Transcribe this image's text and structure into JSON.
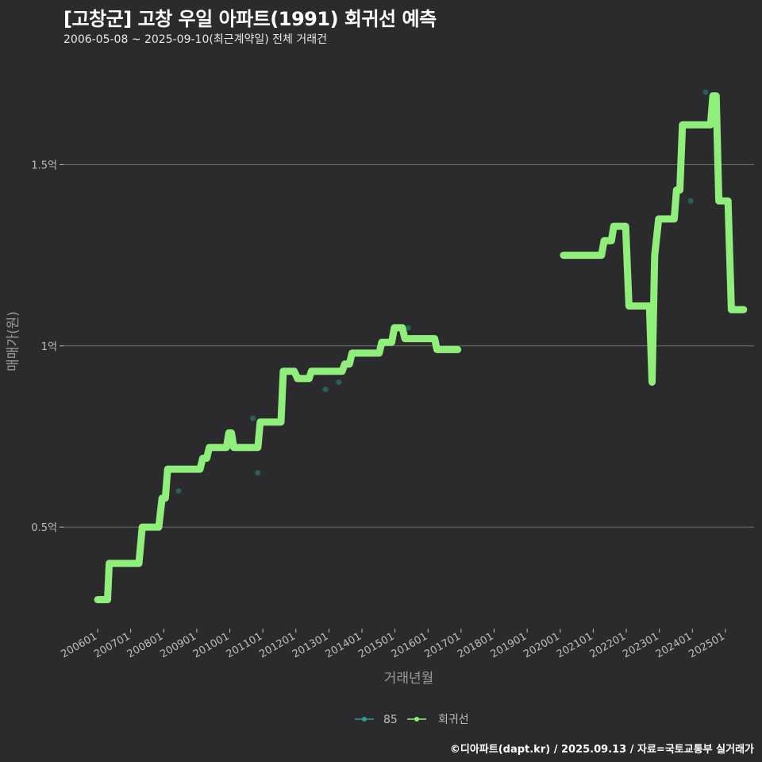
{
  "chart_data": {
    "type": "line",
    "title": "[고창군] 고창 우일 아파트(1991) 회귀선 예측",
    "subtitle": "2006-05-08 ~ 2025-09-10(최근계약일) 전체 거래건",
    "xlabel": "거래년월",
    "ylabel": "매매가(원)",
    "ylim": [
      0.22,
      1.79
    ],
    "y_ticks": [
      {
        "value": 0.5,
        "label": "0.5억"
      },
      {
        "value": 1.0,
        "label": "1억"
      },
      {
        "value": 1.5,
        "label": "1.5억"
      }
    ],
    "x_range": [
      2006.0,
      2026.9
    ],
    "x_ticks": [
      {
        "value": 2006.0,
        "label": "200601"
      },
      {
        "value": 2007.0,
        "label": "200701"
      },
      {
        "value": 2008.0,
        "label": "200801"
      },
      {
        "value": 2009.0,
        "label": "200901"
      },
      {
        "value": 2010.0,
        "label": "201001"
      },
      {
        "value": 2011.0,
        "label": "201101"
      },
      {
        "value": 2012.0,
        "label": "201201"
      },
      {
        "value": 2013.0,
        "label": "201301"
      },
      {
        "value": 2014.0,
        "label": "201401"
      },
      {
        "value": 2015.0,
        "label": "201501"
      },
      {
        "value": 2016.0,
        "label": "201601"
      },
      {
        "value": 2017.0,
        "label": "201701"
      },
      {
        "value": 2018.0,
        "label": "201801"
      },
      {
        "value": 2019.0,
        "label": "201901"
      },
      {
        "value": 2020.0,
        "label": "202001"
      },
      {
        "value": 2021.0,
        "label": "202101"
      },
      {
        "value": 2022.0,
        "label": "202201"
      },
      {
        "value": 2023.0,
        "label": "202301"
      },
      {
        "value": 2024.0,
        "label": "202401"
      },
      {
        "value": 2025.0,
        "label": "202501"
      }
    ],
    "series": [
      {
        "name": "85",
        "kind": "scatter",
        "color": "#2a9d8f",
        "points": [
          [
            2008.45,
            0.6
          ],
          [
            2010.7,
            0.8
          ],
          [
            2010.85,
            0.65
          ],
          [
            2012.9,
            0.88
          ],
          [
            2013.3,
            0.9
          ],
          [
            2015.4,
            1.05
          ],
          [
            2023.95,
            1.4
          ],
          [
            2024.4,
            1.7
          ]
        ]
      },
      {
        "name": "회귀선",
        "kind": "line",
        "color": "#90ee7a",
        "segments": [
          [
            [
              2006.0,
              0.3
            ],
            [
              2006.3,
              0.3
            ],
            [
              2006.35,
              0.4
            ],
            [
              2007.25,
              0.4
            ],
            [
              2007.35,
              0.5
            ],
            [
              2007.85,
              0.5
            ],
            [
              2007.95,
              0.58
            ],
            [
              2008.05,
              0.58
            ],
            [
              2008.12,
              0.66
            ],
            [
              2009.1,
              0.66
            ],
            [
              2009.18,
              0.69
            ],
            [
              2009.3,
              0.69
            ],
            [
              2009.38,
              0.72
            ],
            [
              2009.9,
              0.72
            ],
            [
              2009.97,
              0.76
            ],
            [
              2010.05,
              0.76
            ],
            [
              2010.12,
              0.72
            ],
            [
              2010.85,
              0.72
            ],
            [
              2010.92,
              0.79
            ],
            [
              2011.55,
              0.79
            ],
            [
              2011.62,
              0.93
            ],
            [
              2011.95,
              0.93
            ],
            [
              2012.05,
              0.91
            ],
            [
              2012.4,
              0.91
            ],
            [
              2012.47,
              0.93
            ],
            [
              2013.4,
              0.93
            ],
            [
              2013.48,
              0.95
            ],
            [
              2013.62,
              0.95
            ],
            [
              2013.7,
              0.98
            ],
            [
              2014.0,
              0.98
            ],
            [
              2014.06,
              0.98
            ],
            [
              2014.52,
              0.98
            ],
            [
              2014.6,
              1.01
            ],
            [
              2014.9,
              1.01
            ],
            [
              2014.98,
              1.05
            ],
            [
              2015.22,
              1.05
            ],
            [
              2015.3,
              1.02
            ],
            [
              2016.2,
              1.02
            ],
            [
              2016.27,
              0.99
            ],
            [
              2016.9,
              0.99
            ]
          ],
          [
            [
              2020.1,
              1.25
            ],
            [
              2021.25,
              1.25
            ],
            [
              2021.33,
              1.29
            ],
            [
              2021.55,
              1.29
            ],
            [
              2021.62,
              1.33
            ],
            [
              2021.98,
              1.33
            ],
            [
              2022.08,
              1.11
            ],
            [
              2022.7,
              1.11
            ],
            [
              2022.78,
              0.9
            ],
            [
              2022.86,
              1.25
            ],
            [
              2022.98,
              1.35
            ],
            [
              2023.45,
              1.35
            ],
            [
              2023.52,
              1.43
            ],
            [
              2023.62,
              1.43
            ],
            [
              2023.7,
              1.61
            ],
            [
              2024.55,
              1.61
            ],
            [
              2024.62,
              1.69
            ],
            [
              2024.72,
              1.69
            ],
            [
              2024.8,
              1.4
            ],
            [
              2025.08,
              1.4
            ],
            [
              2025.18,
              1.1
            ],
            [
              2025.55,
              1.1
            ]
          ]
        ]
      }
    ],
    "legend": {
      "position": "bottom",
      "items": [
        "85",
        "회귀선"
      ]
    }
  },
  "footer": "©디아파트(dapt.kr) / 2025.09.13 / 자료=국토교통부 실거래가"
}
